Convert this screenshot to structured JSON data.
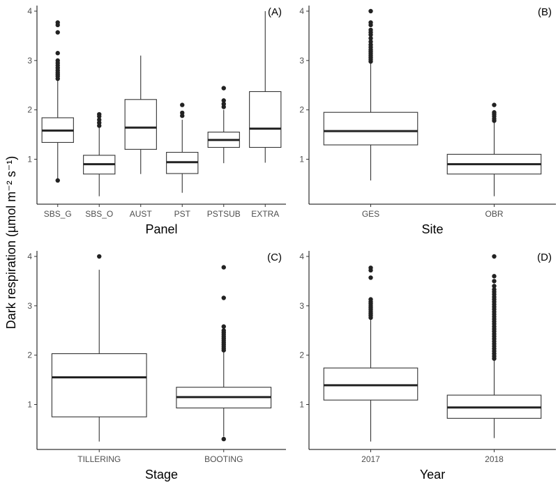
{
  "ylabel": "Dark respiration (µmol m⁻² s⁻¹)",
  "chart_data": [
    {
      "type": "boxplot",
      "tag": "(A)",
      "xlabel": "Panel",
      "ylim": [
        0,
        4.1
      ],
      "yticks": [
        1,
        2,
        3,
        4
      ],
      "categories": [
        "SBS_G",
        "SBS_O",
        "AUST",
        "PST",
        "PSTSUB",
        "EXTRA"
      ],
      "boxes": [
        {
          "lw": 0.57,
          "q1": 1.34,
          "med": 1.58,
          "q3": 1.84,
          "uw": 2.6,
          "outliers": [
            0.57,
            2.63,
            2.68,
            2.72,
            2.76,
            2.8,
            2.85,
            2.9,
            2.95,
            3.0,
            3.15,
            3.57,
            3.72,
            3.77
          ]
        },
        {
          "lw": 0.25,
          "q1": 0.7,
          "med": 0.9,
          "q3": 1.08,
          "uw": 1.65,
          "outliers": [
            1.68,
            1.74,
            1.8,
            1.87,
            1.91
          ]
        },
        {
          "lw": 0.7,
          "q1": 1.2,
          "med": 1.64,
          "q3": 2.21,
          "uw": 3.1,
          "outliers": []
        },
        {
          "lw": 0.32,
          "q1": 0.71,
          "med": 0.94,
          "q3": 1.14,
          "uw": 1.8,
          "outliers": [
            1.88,
            1.94,
            2.1
          ]
        },
        {
          "lw": 0.92,
          "q1": 1.24,
          "med": 1.39,
          "q3": 1.55,
          "uw": 2.0,
          "outliers": [
            2.06,
            2.12,
            2.19,
            2.44
          ]
        },
        {
          "lw": 0.93,
          "q1": 1.24,
          "med": 1.62,
          "q3": 2.37,
          "uw": 4.0,
          "outliers": []
        }
      ]
    },
    {
      "type": "boxplot",
      "tag": "(B)",
      "xlabel": "Site",
      "ylim": [
        0,
        4.1
      ],
      "yticks": [
        1,
        2,
        3,
        4
      ],
      "categories": [
        "GES",
        "OBR"
      ],
      "boxes": [
        {
          "lw": 0.57,
          "q1": 1.29,
          "med": 1.57,
          "q3": 1.95,
          "uw": 2.95,
          "outliers": [
            2.98,
            3.02,
            3.06,
            3.1,
            3.14,
            3.18,
            3.22,
            3.27,
            3.32,
            3.38,
            3.45,
            3.52,
            3.57,
            3.62,
            3.72,
            3.77,
            4.0
          ]
        },
        {
          "lw": 0.25,
          "q1": 0.7,
          "med": 0.9,
          "q3": 1.1,
          "uw": 1.75,
          "outliers": [
            1.78,
            1.82,
            1.87,
            1.91,
            1.95,
            2.1
          ]
        }
      ]
    },
    {
      "type": "boxplot",
      "tag": "(C)",
      "xlabel": "Stage",
      "ylim": [
        0,
        4.1
      ],
      "yticks": [
        1,
        2,
        3,
        4
      ],
      "categories": [
        "TILLERING",
        "BOOTING"
      ],
      "boxes": [
        {
          "lw": 0.25,
          "q1": 0.75,
          "med": 1.55,
          "q3": 2.03,
          "uw": 3.73,
          "outliers": [
            4.0
          ]
        },
        {
          "lw": 0.35,
          "q1": 0.93,
          "med": 1.15,
          "q3": 1.35,
          "uw": 2.07,
          "outliers": [
            0.3,
            2.1,
            2.14,
            2.18,
            2.22,
            2.26,
            2.3,
            2.34,
            2.38,
            2.42,
            2.46,
            2.5,
            2.58,
            3.16,
            3.78
          ]
        }
      ]
    },
    {
      "type": "boxplot",
      "tag": "(D)",
      "xlabel": "Year",
      "ylim": [
        0,
        4.1
      ],
      "yticks": [
        1,
        2,
        3,
        4
      ],
      "categories": [
        "2017",
        "2018"
      ],
      "boxes": [
        {
          "lw": 0.25,
          "q1": 1.09,
          "med": 1.39,
          "q3": 1.74,
          "uw": 2.72,
          "outliers": [
            2.76,
            2.8,
            2.84,
            2.88,
            2.92,
            2.96,
            3.0,
            3.04,
            3.08,
            3.13,
            3.57,
            3.72,
            3.77
          ]
        },
        {
          "lw": 0.32,
          "q1": 0.72,
          "med": 0.94,
          "q3": 1.19,
          "uw": 1.9,
          "outliers": [
            1.93,
            1.98,
            2.03,
            2.08,
            2.13,
            2.18,
            2.23,
            2.28,
            2.33,
            2.38,
            2.43,
            2.48,
            2.53,
            2.58,
            2.63,
            2.68,
            2.73,
            2.78,
            2.83,
            2.88,
            2.93,
            2.98,
            3.03,
            3.08,
            3.13,
            3.18,
            3.23,
            3.28,
            3.33,
            3.4,
            3.5,
            3.6,
            4.0
          ]
        }
      ]
    }
  ]
}
